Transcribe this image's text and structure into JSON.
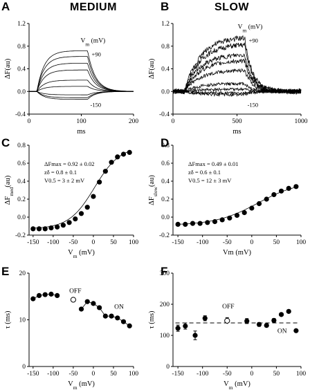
{
  "columns": {
    "left": "MEDIUM",
    "right": "SLOW"
  },
  "panel_letters": {
    "A": "A",
    "B": "B",
    "C": "C",
    "D": "D",
    "E": "E",
    "F": "F"
  },
  "chart_data": [
    {
      "panel": "A",
      "type": "line",
      "ylabel": "ΔF(au)",
      "xlabel": "ms",
      "xlim": [
        0,
        200
      ],
      "ylim": [
        -0.4,
        1.2
      ],
      "xticks": [
        0,
        100,
        200
      ],
      "yticks": [
        -0.4,
        0.0,
        0.4,
        0.8,
        1.2
      ],
      "annotations": {
        "vm_label": "Vm (mV)",
        "top": "+90",
        "bottom": "-150"
      },
      "params": {
        "onset": 15,
        "offset": 112,
        "tau_on": 14,
        "tau_off": 15
      },
      "series": [
        {
          "amp": 0.72
        },
        {
          "amp": 0.62
        },
        {
          "amp": 0.5
        },
        {
          "amp": 0.38
        },
        {
          "amp": 0.2
        },
        {
          "amp": 0.09
        },
        {
          "amp": -0.06
        },
        {
          "amp": -0.11
        },
        {
          "amp": -0.14
        }
      ]
    },
    {
      "panel": "B",
      "type": "line",
      "ylabel": "ΔF(au)",
      "xlabel": "ms",
      "xlim": [
        0,
        1000
      ],
      "ylim": [
        -0.4,
        1.2
      ],
      "xticks": [
        0,
        500,
        1000
      ],
      "yticks": [
        -0.4,
        0.0,
        0.4,
        0.8,
        1.2
      ],
      "annotations": {
        "vm_label": "Vm (mV)",
        "top": "+90",
        "bottom": "-150"
      },
      "params": {
        "onset": 90,
        "offset": 560,
        "tau_on": 120,
        "tau_off": 60
      },
      "series": [
        {
          "amp": 0.96
        },
        {
          "amp": 0.84
        },
        {
          "amp": 0.66
        },
        {
          "amp": 0.55
        },
        {
          "amp": 0.38
        },
        {
          "amp": 0.14
        },
        {
          "amp": 0.04
        },
        {
          "amp": -0.03
        },
        {
          "amp": -0.06
        }
      ]
    },
    {
      "panel": "C",
      "type": "scatter",
      "ylabel": "ΔF",
      "ylabel_sub": "med",
      "ylabel_unit": "(au)",
      "xlabel": "V",
      "xlabel_sub": "m",
      "xlabel_unit": "(mV)",
      "xlim": [
        -160,
        100
      ],
      "ylim": [
        -0.2,
        0.8
      ],
      "xticks": [
        -150,
        -100,
        -50,
        0,
        50,
        100
      ],
      "yticks": [
        -0.2,
        0.0,
        0.2,
        0.4,
        0.6,
        0.8
      ],
      "fit_text": [
        "ΔFmax = 0.92 ± 0.02",
        "zδ = 0.8 ± 0.1",
        "V0.5 = 3 ± 2 mV"
      ],
      "fit": {
        "fmax": 0.92,
        "z": 0.8,
        "v05": 3,
        "offset": -0.13
      },
      "x": [
        -150,
        -135,
        -120,
        -105,
        -90,
        -75,
        -60,
        -45,
        -30,
        -15,
        0,
        15,
        30,
        45,
        60,
        75,
        90
      ],
      "y": [
        -0.13,
        -0.13,
        -0.13,
        -0.12,
        -0.11,
        -0.09,
        -0.06,
        -0.02,
        0.04,
        0.11,
        0.23,
        0.39,
        0.51,
        0.61,
        0.67,
        0.7,
        0.72
      ]
    },
    {
      "panel": "D",
      "type": "scatter",
      "ylabel": "ΔF",
      "ylabel_sub": "slow",
      "ylabel_unit": "(au)",
      "xlabel": "Vm (mV)",
      "xlim": [
        -160,
        100
      ],
      "ylim": [
        -0.2,
        0.8
      ],
      "xticks": [
        -150,
        -100,
        -50,
        0,
        50,
        100
      ],
      "yticks": [
        -0.2,
        0.0,
        0.2,
        0.4,
        0.6,
        0.8
      ],
      "fit_text": [
        "ΔFmax = 0.49 ± 0.01",
        "zδ = 0.6 ± 0.1",
        "V0.5 = 12 ± 3 mV"
      ],
      "fit": {
        "fmax": 0.49,
        "z": 0.6,
        "v05": 12,
        "offset": -0.09
      },
      "x": [
        -150,
        -135,
        -120,
        -105,
        -90,
        -75,
        -60,
        -45,
        -30,
        -15,
        0,
        15,
        30,
        45,
        60,
        75,
        90
      ],
      "y": [
        -0.08,
        -0.08,
        -0.07,
        -0.07,
        -0.06,
        -0.05,
        -0.03,
        -0.01,
        0.02,
        0.05,
        0.1,
        0.15,
        0.2,
        0.25,
        0.29,
        0.32,
        0.34
      ]
    },
    {
      "panel": "E",
      "type": "scatter",
      "ylabel": "τ (ms)",
      "xlabel": "V",
      "xlabel_sub": "m",
      "xlabel_unit": "(mV)",
      "xlim": [
        -160,
        100
      ],
      "ylim": [
        0,
        20
      ],
      "xticks": [
        -150,
        -100,
        -50,
        0,
        50,
        100
      ],
      "yticks": [
        0,
        10,
        20
      ],
      "labels": {
        "off": "OFF",
        "on": "ON"
      },
      "on_x": [
        -150,
        -135,
        -120,
        -105,
        -90,
        -30,
        -15,
        0,
        15,
        30,
        45,
        60,
        75,
        90
      ],
      "on_y": [
        14.5,
        15.2,
        15.4,
        15.5,
        15.2,
        12.3,
        13.9,
        13.5,
        12.6,
        10.8,
        10.8,
        10.4,
        9.6,
        8.7
      ],
      "off_x": [
        -50
      ],
      "off_y": [
        14.3
      ]
    },
    {
      "panel": "F",
      "type": "scatter",
      "ylabel": "τ (ms)",
      "xlabel": "V",
      "xlabel_sub": "m",
      "xlabel_unit": "(mV)",
      "xlim": [
        -160,
        100
      ],
      "ylim": [
        0,
        300
      ],
      "xticks": [
        -150,
        -100,
        -50,
        0,
        50,
        100
      ],
      "yticks": [
        0,
        100,
        200,
        300
      ],
      "labels": {
        "off": "OFF",
        "on": "ON"
      },
      "dashed_y": 140,
      "on_x": [
        -150,
        -135,
        -115,
        -95,
        -10,
        15,
        30,
        45,
        60,
        75,
        90
      ],
      "on_y": [
        123,
        130,
        100,
        155,
        146,
        135,
        132,
        148,
        167,
        177,
        115
      ],
      "on_err": [
        10,
        10,
        14,
        8,
        8,
        6,
        5,
        6,
        0,
        0,
        0
      ],
      "off_x": [
        -50
      ],
      "off_y": [
        147
      ],
      "off_err": [
        10
      ]
    }
  ]
}
